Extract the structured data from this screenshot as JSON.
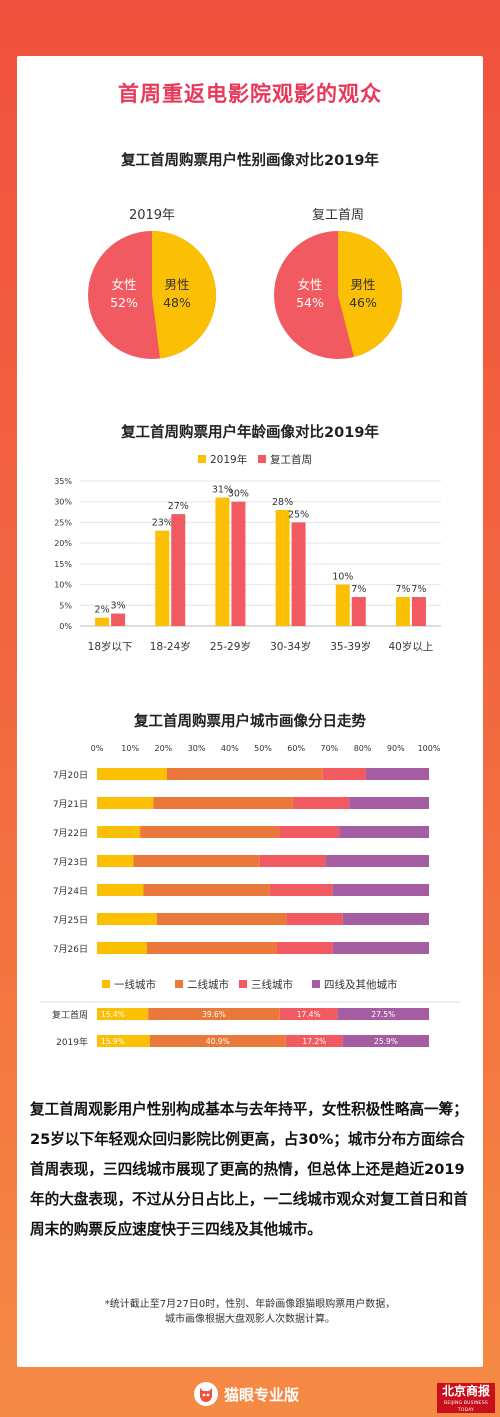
{
  "colors": {
    "yellow": "#fbbf04",
    "red": "#f05a60",
    "orange": "#e9783a",
    "purple": "#a35da0"
  },
  "main_title": "首周重返电影院观影的观众",
  "gender_title": "复工首周购票用户性别画像对比2019年",
  "age_title": "复工首周购票用户年龄画像对比2019年",
  "city_title": "复工首周购票用户城市画像分日走势",
  "summary": "复工首周观影用户性别构成基本与去年持平，女性积极性略高一筹；25岁以下年轻观众回归影院比例更高，占30%；城市分布方面综合首周表现，三四线城市展现了更高的热情，但总体上还是趋近2019年的大盘表现，不过从分日占比上，一二线城市观众对复工首日和首周末的购票反应速度快于三四线及其他城市。",
  "footnote_line1": "*统计截止至7月27日0时，性别、年龄画像跟猫眼购票用户数据，",
  "footnote_line2": "城市画像根据大盘观影人次数据计算。",
  "logo_text": "猫眼专业版",
  "badge_cn": "北京商报",
  "badge_en": "BEIJING BUSINESS TODAY",
  "chart_data": [
    {
      "type": "pie",
      "title": "2019年",
      "slices": [
        {
          "label": "男性",
          "value": 48,
          "display": "48%"
        },
        {
          "label": "女性",
          "value": 52,
          "display": "52%"
        }
      ]
    },
    {
      "type": "pie",
      "title": "复工首周",
      "slices": [
        {
          "label": "男性",
          "value": 46,
          "display": "46%"
        },
        {
          "label": "女性",
          "value": 54,
          "display": "54%"
        }
      ]
    },
    {
      "type": "bar",
      "title": "复工首周购票用户年龄画像对比2019年",
      "categories": [
        "18岁以下",
        "18-24岁",
        "25-29岁",
        "30-34岁",
        "35-39岁",
        "40岁以上"
      ],
      "series": [
        {
          "name": "2019年",
          "values": [
            2,
            23,
            31,
            28,
            10,
            7
          ]
        },
        {
          "name": "复工首周",
          "values": [
            3,
            27,
            30,
            25,
            7,
            7
          ]
        }
      ],
      "ylim": [
        0,
        35
      ],
      "yticks": [
        "0%",
        "5%",
        "10%",
        "15%",
        "20%",
        "25%",
        "30%",
        "35%"
      ],
      "legend": "top",
      "grid": true
    },
    {
      "type": "bar",
      "stacked": "horizontal-100",
      "title": "复工首周购票用户城市画像分日走势",
      "categories": [
        "7月20日",
        "7月21日",
        "7月22日",
        "7月23日",
        "7月24日",
        "7月25日",
        "7月26日"
      ],
      "series": [
        {
          "name": "一线城市",
          "values": [
            21,
            17,
            13,
            11,
            14,
            18,
            15
          ]
        },
        {
          "name": "二线城市",
          "values": [
            47,
            42,
            42,
            38,
            38,
            39,
            39
          ]
        },
        {
          "name": "三线城市",
          "values": [
            13,
            17,
            18,
            20,
            19,
            17,
            17
          ]
        },
        {
          "name": "四线及其他城市",
          "values": [
            19,
            24,
            27,
            31,
            29,
            26,
            29
          ]
        }
      ],
      "xticks": [
        "0%",
        "10%",
        "20%",
        "30%",
        "40%",
        "50%",
        "60%",
        "70%",
        "80%",
        "90%",
        "100%"
      ],
      "legend": "bottom"
    },
    {
      "type": "bar",
      "stacked": "horizontal-100",
      "categories": [
        "复工首周",
        "2019年"
      ],
      "series": [
        {
          "name": "一线城市",
          "values": [
            15.4,
            15.9
          ],
          "labels": [
            "15.4%",
            "15.9%"
          ]
        },
        {
          "name": "二线城市",
          "values": [
            39.6,
            40.9
          ],
          "labels": [
            "39.6%",
            "40.9%"
          ]
        },
        {
          "name": "三线城市",
          "values": [
            17.4,
            17.2
          ],
          "labels": [
            "17.4%",
            "17.2%"
          ]
        },
        {
          "name": "四线及其他城市",
          "values": [
            27.5,
            25.9
          ],
          "labels": [
            "27.5%",
            "25.9%"
          ]
        }
      ]
    }
  ]
}
